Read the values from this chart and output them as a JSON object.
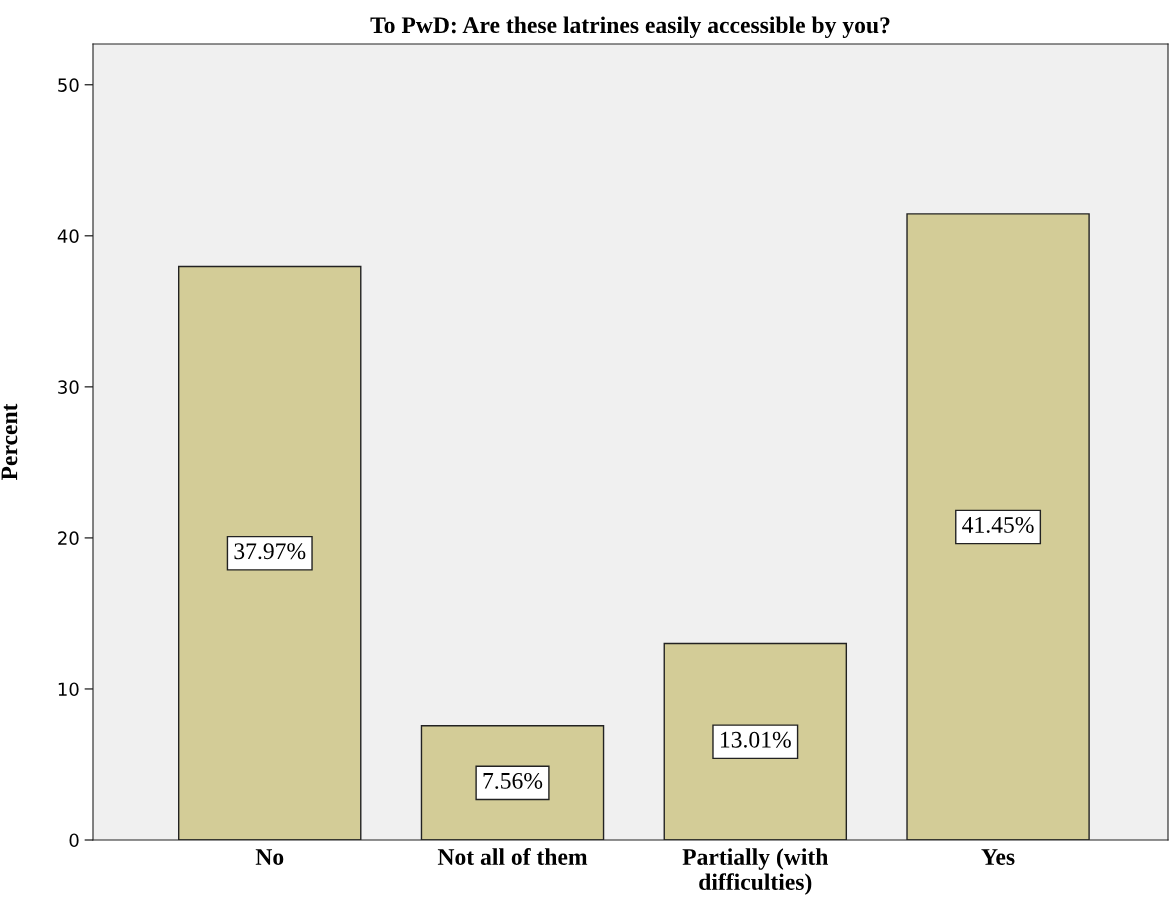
{
  "chart_data": {
    "type": "bar",
    "title": "To PwD: Are these latrines easily accessible by you?",
    "ylabel": "Percent",
    "categories": [
      "No",
      "Not all of them",
      "Partially (with\ndifficulties)",
      "Yes"
    ],
    "values": [
      37.97,
      7.56,
      13.01,
      41.45
    ],
    "value_labels": [
      "37.97%",
      "7.56%",
      "13.01%",
      "41.45%"
    ],
    "color": "#d3cc97",
    "ylim": [
      0,
      52.7
    ],
    "yticks": [
      0,
      10,
      20,
      30,
      40,
      50
    ],
    "grid": false
  }
}
